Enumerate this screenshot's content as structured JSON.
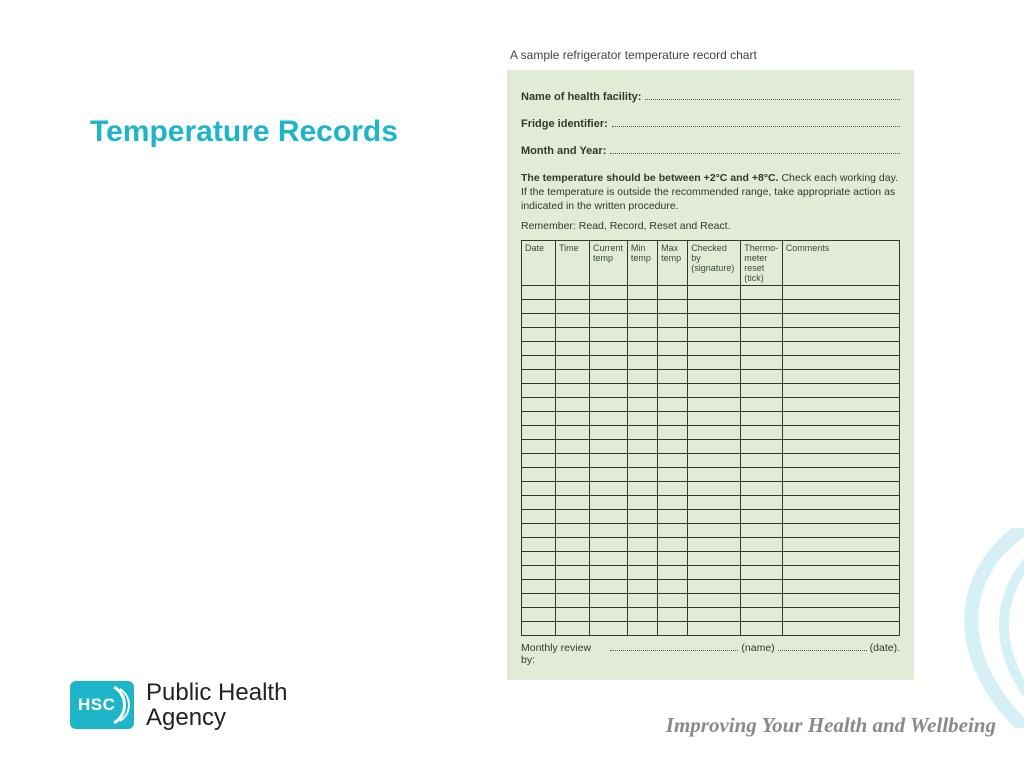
{
  "title": "Temperature Records",
  "form": {
    "caption": "A sample refrigerator temperature record chart",
    "fields": {
      "facility_label": "Name of health facility:",
      "fridge_label": "Fridge identifier:",
      "month_label": "Month and Year:"
    },
    "instruction_strong": "The temperature should be between +2°C and +8°C.",
    "instruction_rest": " Check each working day. If the temperature is outside the recommended range, take appropriate action as indicated in the written procedure.",
    "remember": "Remember: Read, Record, Reset and React.",
    "columns": [
      "Date",
      "Time",
      "Current temp",
      "Min temp",
      "Max temp",
      "Checked by (signature)",
      "Thermo-meter reset (tick)",
      "Comments"
    ],
    "col_widths_pct": [
      9,
      9,
      10,
      8,
      8,
      14,
      11,
      31
    ],
    "blank_rows": 25,
    "footer": {
      "prefix": "Monthly review by:",
      "name_paren": "(name)",
      "date_paren": "(date)."
    },
    "panel_bg": "#e1ebd6",
    "border_color": "#2d3a2d"
  },
  "logo": {
    "badge_text": "HSC",
    "badge_bg": "#1fb5c9",
    "line1": "Public Health",
    "line2": "Agency"
  },
  "tagline": "Improving Your Health and Wellbeing",
  "colors": {
    "title": "#1fb5c9",
    "tagline": "#8a8a8a",
    "swirl": "#1fb5c9"
  }
}
